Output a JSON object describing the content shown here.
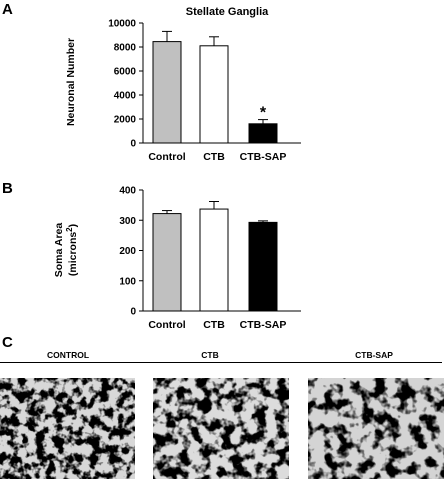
{
  "figure": {
    "panel_a_letter": "A",
    "panel_b_letter": "B",
    "panel_c_letter": "C"
  },
  "chart_data": [
    {
      "type": "bar",
      "title": "Stellate Ganglia",
      "ylabel": "Neuronal Number",
      "ylim": [
        0,
        10000
      ],
      "yticks": [
        0,
        2000,
        4000,
        6000,
        8000,
        10000
      ],
      "categories": [
        "Control",
        "CTB",
        "CTB-SAP"
      ],
      "values": [
        8450,
        8100,
        1600
      ],
      "errors": [
        850,
        750,
        350
      ],
      "colors": [
        "#c0c0c0",
        "#ffffff",
        "#000000"
      ],
      "annotations": [
        {
          "category": "CTB-SAP",
          "text": "*"
        }
      ]
    },
    {
      "type": "bar",
      "ylabel_line1": "Soma Area",
      "ylabel_line2": "(microns",
      "ylabel_sup": "2",
      "ylabel_end": ")",
      "ylim": [
        0,
        400
      ],
      "yticks": [
        0,
        100,
        200,
        300,
        400
      ],
      "categories": [
        "Control",
        "CTB",
        "CTB-SAP"
      ],
      "values": [
        322,
        337,
        293
      ],
      "errors": [
        10,
        25,
        5
      ],
      "colors": [
        "#c0c0c0",
        "#ffffff",
        "#000000"
      ]
    }
  ],
  "micrographs": {
    "labels": [
      "CONTROL",
      "CTB",
      "CTB-SAP"
    ]
  }
}
